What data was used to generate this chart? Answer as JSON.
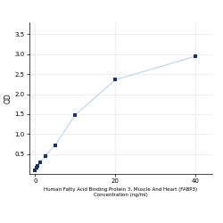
{
  "x": [
    0,
    0.313,
    0.625,
    1.25,
    2.5,
    5,
    10,
    20,
    40
  ],
  "y": [
    0.1,
    0.15,
    0.2,
    0.3,
    0.45,
    0.72,
    1.48,
    2.36,
    2.95
  ],
  "line_color": "#b8d4ea",
  "marker_color": "#1a2f6e",
  "marker_style": "s",
  "marker_size": 3.5,
  "xlabel_line1": "Human Fatty Acid Binding Protein 3, Muscle And Heart (FABP3)",
  "xlabel_line2": "Concentration (ng/ml)",
  "ylabel": "OD",
  "xlim": [
    -1.5,
    44
  ],
  "ylim": [
    0,
    3.8
  ],
  "yticks": [
    0.5,
    1.0,
    1.5,
    2.0,
    2.5,
    3.0,
    3.5
  ],
  "xticks": [
    0,
    20,
    40
  ],
  "grid_color": "#d8d8d8",
  "background_color": "#ffffff",
  "xlabel_fontsize": 4.0,
  "ylabel_fontsize": 5.5,
  "tick_fontsize": 5.0,
  "line_width": 0.8
}
